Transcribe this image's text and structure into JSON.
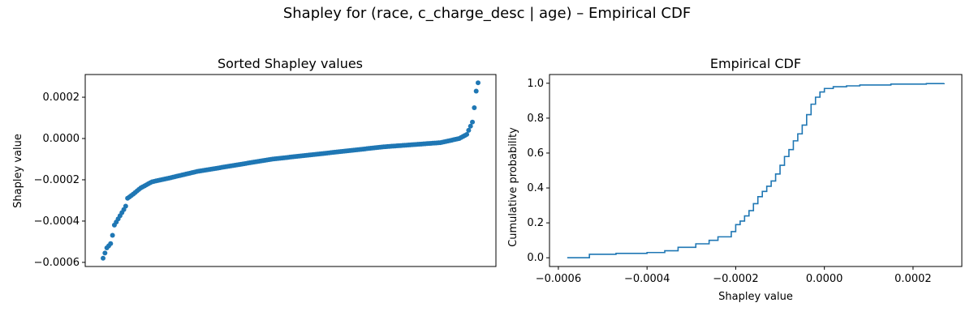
{
  "figure": {
    "suptitle": "Shapley for (race, c_charge_desc | age) – Empirical CDF"
  },
  "chart_data": [
    {
      "type": "scatter",
      "title": "Sorted Shapley values",
      "xlabel": "",
      "ylabel": "Shapley value",
      "x_ticks_visible": false,
      "ylim": [
        -0.00062,
        0.00031
      ],
      "yticks": [
        -0.0006,
        -0.0004,
        -0.0002,
        0.0,
        0.0002
      ],
      "ytick_labels": [
        "−0.0006",
        "−0.0004",
        "−0.0002",
        "0.0000",
        "0.0002"
      ],
      "color": "#1f77b4",
      "n_points": 200,
      "sorted_values_quantiles": [
        [
          0.0,
          -0.00058
        ],
        [
          0.01,
          -0.00053
        ],
        [
          0.02,
          -0.00051
        ],
        [
          0.025,
          -0.00047
        ],
        [
          0.03,
          -0.00042
        ],
        [
          0.04,
          -0.00039
        ],
        [
          0.05,
          -0.00036
        ],
        [
          0.06,
          -0.00033
        ],
        [
          0.065,
          -0.00029
        ],
        [
          0.08,
          -0.00027
        ],
        [
          0.1,
          -0.00024
        ],
        [
          0.13,
          -0.00021
        ],
        [
          0.18,
          -0.00019
        ],
        [
          0.25,
          -0.00016
        ],
        [
          0.35,
          -0.00013
        ],
        [
          0.45,
          -0.0001
        ],
        [
          0.55,
          -8e-05
        ],
        [
          0.65,
          -6e-05
        ],
        [
          0.75,
          -4e-05
        ],
        [
          0.9,
          -2e-05
        ],
        [
          0.95,
          0.0
        ],
        [
          0.97,
          2e-05
        ],
        [
          0.985,
          8e-05
        ],
        [
          0.99,
          0.00015
        ],
        [
          0.995,
          0.00023
        ],
        [
          1.0,
          0.00027
        ]
      ]
    },
    {
      "type": "line",
      "title": "Empirical CDF",
      "xlabel": "Shapley value",
      "ylabel": "Cumulative probability",
      "xlim": [
        -0.00062,
        0.00031
      ],
      "ylim": [
        -0.05,
        1.05
      ],
      "xticks": [
        -0.0006,
        -0.0004,
        -0.0002,
        0.0,
        0.0002
      ],
      "xtick_labels": [
        "−0.0006",
        "−0.0004",
        "−0.0002",
        "0.0000",
        "0.0002"
      ],
      "yticks": [
        0.0,
        0.2,
        0.4,
        0.6,
        0.8,
        1.0
      ],
      "ytick_labels": [
        "0.0",
        "0.2",
        "0.4",
        "0.6",
        "0.8",
        "1.0"
      ],
      "color": "#1f77b4",
      "step": true,
      "points": [
        [
          -0.00058,
          0.0
        ],
        [
          -0.00053,
          0.02
        ],
        [
          -0.00047,
          0.025
        ],
        [
          -0.0004,
          0.03
        ],
        [
          -0.00036,
          0.04
        ],
        [
          -0.00033,
          0.06
        ],
        [
          -0.00029,
          0.08
        ],
        [
          -0.00026,
          0.1
        ],
        [
          -0.00024,
          0.12
        ],
        [
          -0.00021,
          0.15
        ],
        [
          -0.0002,
          0.19
        ],
        [
          -0.00019,
          0.21
        ],
        [
          -0.00018,
          0.24
        ],
        [
          -0.00017,
          0.27
        ],
        [
          -0.00016,
          0.31
        ],
        [
          -0.00015,
          0.35
        ],
        [
          -0.00014,
          0.38
        ],
        [
          -0.00013,
          0.41
        ],
        [
          -0.00012,
          0.44
        ],
        [
          -0.00011,
          0.48
        ],
        [
          -0.0001,
          0.53
        ],
        [
          -9e-05,
          0.58
        ],
        [
          -8e-05,
          0.62
        ],
        [
          -7e-05,
          0.67
        ],
        [
          -6e-05,
          0.71
        ],
        [
          -5e-05,
          0.76
        ],
        [
          -4e-05,
          0.82
        ],
        [
          -3e-05,
          0.88
        ],
        [
          -2e-05,
          0.92
        ],
        [
          -1e-05,
          0.95
        ],
        [
          0.0,
          0.97
        ],
        [
          2e-05,
          0.98
        ],
        [
          5e-05,
          0.985
        ],
        [
          8e-05,
          0.99
        ],
        [
          0.00015,
          0.995
        ],
        [
          0.00023,
          0.998
        ],
        [
          0.00027,
          1.0
        ]
      ]
    }
  ]
}
